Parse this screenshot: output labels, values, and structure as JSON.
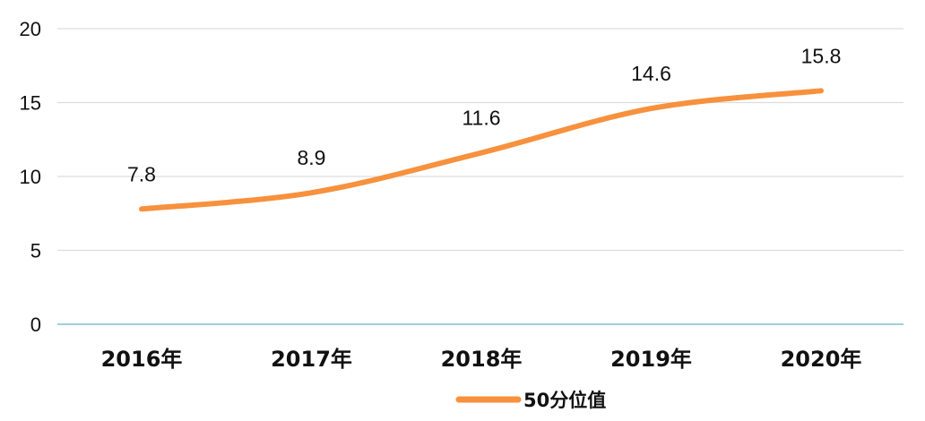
{
  "chart_data": {
    "type": "line",
    "categories": [
      "2016年",
      "2017年",
      "2018年",
      "2019年",
      "2020年"
    ],
    "series": [
      {
        "name": "50分位值",
        "values": [
          7.8,
          8.9,
          11.6,
          14.6,
          15.8
        ],
        "color": "#F7913D",
        "data_labels": [
          "7.8",
          "8.9",
          "11.6",
          "14.6",
          "15.8"
        ]
      }
    ],
    "y_ticks": [
      "0",
      "5",
      "10",
      "15",
      "20"
    ],
    "ylim": [
      0,
      20
    ],
    "grid": true,
    "smooth": true,
    "legend": "bottom-center",
    "colors": {
      "grid": "#DDDDDD",
      "baseline": "#7FC1D1"
    }
  }
}
